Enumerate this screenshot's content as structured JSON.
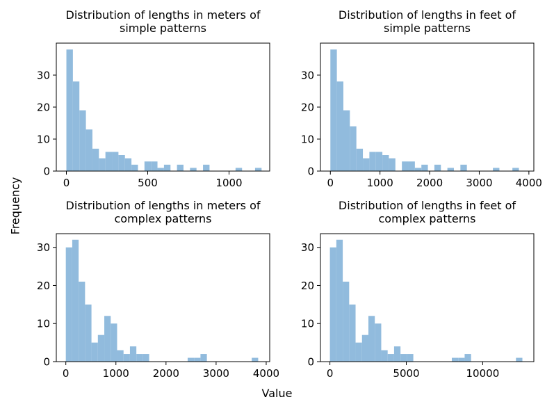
{
  "figure": {
    "xlabel": "Value",
    "ylabel": "Frequency",
    "bar_color": "#8db9dc"
  },
  "chart_data": [
    {
      "type": "bar",
      "title_lines": [
        "Distribution of lengths in meters of",
        "simple patterns"
      ],
      "xlim": [
        -62,
        1250
      ],
      "ylim": [
        0,
        40
      ],
      "xticks": [
        0,
        500,
        1000
      ],
      "xtick_labels": [
        "0",
        "500",
        "1000"
      ],
      "yticks": [
        0,
        10,
        20,
        30
      ],
      "ytick_labels": [
        "0",
        "10",
        "20",
        "30"
      ],
      "bin_start": 0,
      "bin_width": 40,
      "values": [
        38,
        28,
        19,
        13,
        7,
        4,
        6,
        6,
        5,
        4,
        2,
        0,
        3,
        3,
        1,
        2,
        0,
        2,
        0,
        1,
        0,
        2,
        0,
        0,
        0,
        0,
        1,
        0,
        0,
        1
      ]
    },
    {
      "type": "bar",
      "title_lines": [
        "Distribution of lengths in feet of",
        "simple patterns"
      ],
      "xlim": [
        -200,
        4100
      ],
      "ylim": [
        0,
        40
      ],
      "xticks": [
        0,
        1000,
        2000,
        3000,
        4000
      ],
      "xtick_labels": [
        "0",
        "1000",
        "2000",
        "3000",
        "4000"
      ],
      "yticks": [
        0,
        10,
        20,
        30
      ],
      "ytick_labels": [
        "0",
        "10",
        "20",
        "30"
      ],
      "bin_start": 0,
      "bin_width": 131,
      "values": [
        38,
        28,
        19,
        14,
        7,
        4,
        6,
        6,
        5,
        4,
        0,
        3,
        3,
        1,
        2,
        0,
        2,
        0,
        1,
        0,
        2,
        0,
        0,
        0,
        0,
        1,
        0,
        0,
        1
      ]
    },
    {
      "type": "bar",
      "title_lines": [
        "Distribution of lengths in meters of",
        "complex patterns"
      ],
      "xlim": [
        -190,
        4070
      ],
      "ylim": [
        0,
        33.6
      ],
      "xticks": [
        0,
        1000,
        2000,
        3000,
        4000
      ],
      "xtick_labels": [
        "0",
        "1000",
        "2000",
        "3000",
        "4000"
      ],
      "yticks": [
        0,
        10,
        20,
        30
      ],
      "ytick_labels": [
        "0",
        "10",
        "20",
        "30"
      ],
      "bin_start": 0,
      "bin_width": 128,
      "values": [
        30,
        32,
        21,
        15,
        5,
        7,
        12,
        10,
        3,
        2,
        4,
        2,
        2,
        0,
        0,
        0,
        0,
        0,
        0,
        1,
        1,
        2,
        0,
        0,
        0,
        0,
        0,
        0,
        0,
        1
      ]
    },
    {
      "type": "bar",
      "title_lines": [
        "Distribution of lengths in feet of",
        "complex patterns"
      ],
      "xlim": [
        -620,
        13350
      ],
      "ylim": [
        0,
        33.6
      ],
      "xticks": [
        0,
        5000,
        10000
      ],
      "xtick_labels": [
        "0",
        "5000",
        "10000"
      ],
      "yticks": [
        0,
        10,
        20,
        30
      ],
      "ytick_labels": [
        "0",
        "10",
        "20",
        "30"
      ],
      "bin_start": 0,
      "bin_width": 420,
      "values": [
        30,
        32,
        21,
        15,
        5,
        7,
        12,
        10,
        3,
        2,
        4,
        2,
        2,
        0,
        0,
        0,
        0,
        0,
        0,
        1,
        1,
        2,
        0,
        0,
        0,
        0,
        0,
        0,
        0,
        1
      ]
    }
  ]
}
